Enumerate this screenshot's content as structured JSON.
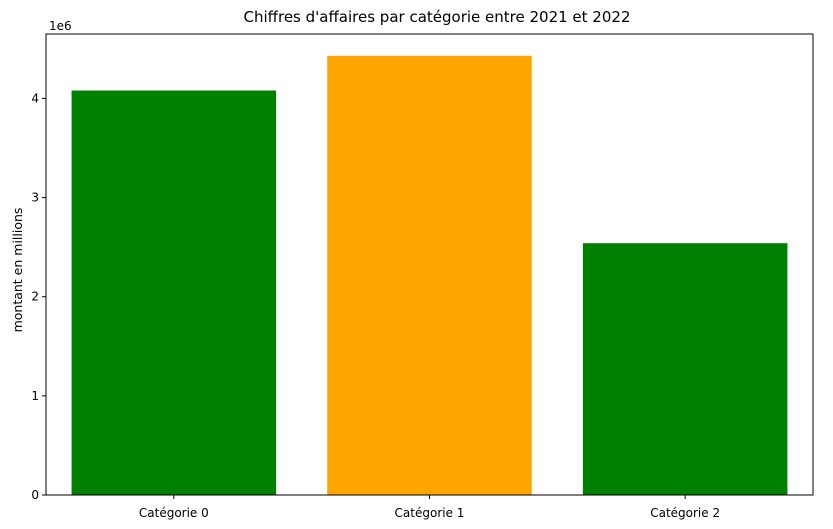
{
  "chart_data": {
    "type": "bar",
    "title": "Chiffres d'affaires par catégorie entre 2021 et 2022",
    "xlabel": "",
    "ylabel": "montant en millions",
    "categories": [
      "Catégorie 0",
      "Catégorie 1",
      "Catégorie 2"
    ],
    "values": [
      4080000,
      4430000,
      2540000
    ],
    "colors": [
      "#008000",
      "#ffa500",
      "#008000"
    ],
    "ylim": [
      0,
      4650000
    ],
    "yticks": [
      0,
      1000000,
      2000000,
      3000000,
      4000000
    ],
    "ytick_labels": [
      "0",
      "1",
      "2",
      "3",
      "4"
    ],
    "y_offset_label": "1e6",
    "grid": false,
    "legend": "none"
  }
}
